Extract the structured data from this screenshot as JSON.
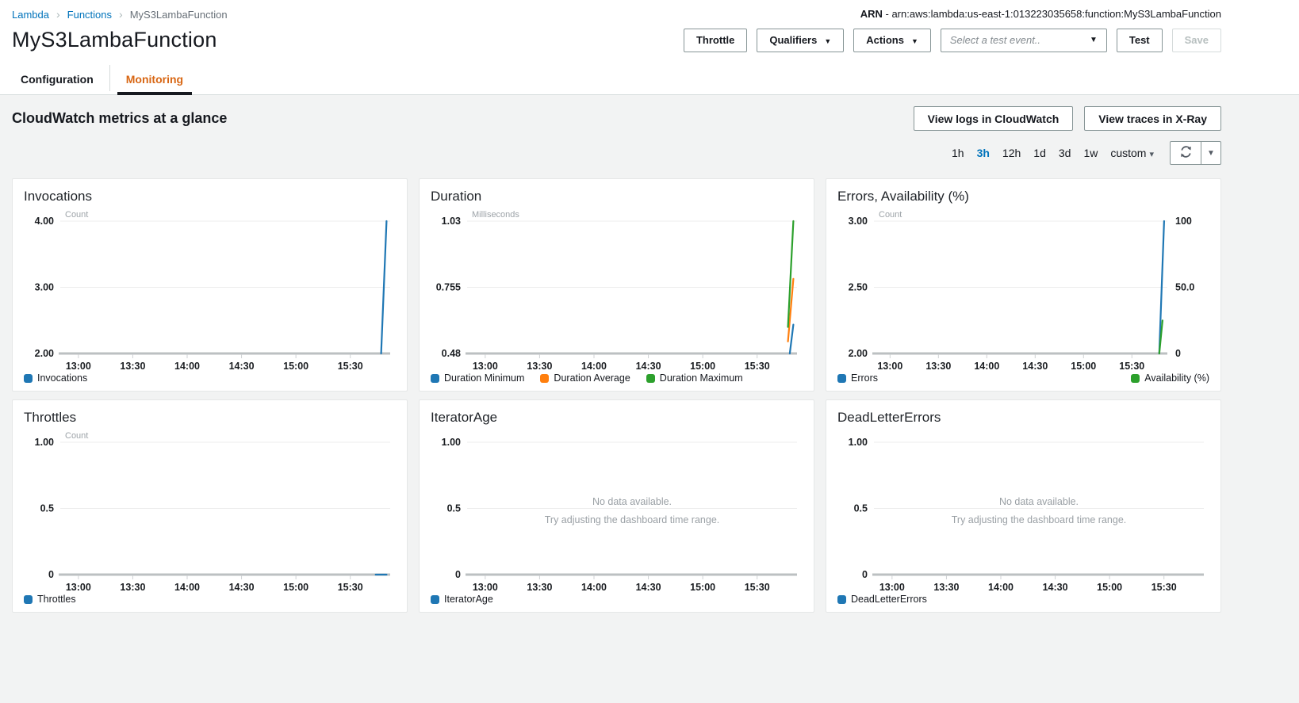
{
  "breadcrumb": {
    "items": [
      {
        "label": "Lambda",
        "link": true
      },
      {
        "label": "Functions",
        "link": true
      },
      {
        "label": "MyS3LambaFunction",
        "link": false
      }
    ]
  },
  "arn": {
    "label": "ARN",
    "dash": " - ",
    "value": "arn:aws:lambda:us-east-1:013223035658:function:MyS3LambaFunction"
  },
  "page_title": "MyS3LambaFunction",
  "toolbar": {
    "throttle": "Throttle",
    "qualifiers": "Qualifiers",
    "actions": "Actions",
    "test_event_placeholder": "Select a test event..",
    "test": "Test",
    "save": "Save"
  },
  "tabs": [
    {
      "label": "Configuration",
      "active": false
    },
    {
      "label": "Monitoring",
      "active": true
    }
  ],
  "metrics_header": {
    "title": "CloudWatch metrics at a glance",
    "view_logs": "View logs in CloudWatch",
    "view_traces": "View traces in X-Ray"
  },
  "time_controls": {
    "ranges": [
      "1h",
      "3h",
      "12h",
      "1d",
      "3d",
      "1w"
    ],
    "selected": "3h",
    "custom_label": "custom"
  },
  "no_data_messages": {
    "line1": "No data available.",
    "line2": "Try adjusting the dashboard time range."
  },
  "colors": {
    "blue": "#1f77b4",
    "orange": "#ff7f0e",
    "green": "#2ca02c",
    "accent_orange": "#d86613",
    "link_blue": "#0073bb"
  },
  "chart_data": [
    {
      "type": "line",
      "title": "Invocations",
      "unit": "Count",
      "no_data": false,
      "legend_layout": "row",
      "x_range": [
        "12:50",
        "15:52"
      ],
      "x_ticks": [
        "13:00",
        "13:30",
        "14:00",
        "14:30",
        "15:00",
        "15:30"
      ],
      "y_axis": {
        "ticks": [
          "4.00",
          "3.00",
          "2.00"
        ],
        "min": 2,
        "max": 4
      },
      "series": [
        {
          "name": "Invocations",
          "color": "blue",
          "axis": "left",
          "points": [
            [
              "15:47",
              2
            ],
            [
              "15:50",
              4
            ]
          ]
        }
      ]
    },
    {
      "type": "line",
      "title": "Duration",
      "unit": "Milliseconds",
      "no_data": false,
      "legend_layout": "row",
      "x_range": [
        "12:50",
        "15:52"
      ],
      "x_ticks": [
        "13:00",
        "13:30",
        "14:00",
        "14:30",
        "15:00",
        "15:30"
      ],
      "y_axis": {
        "ticks": [
          "1.03",
          "0.755",
          "0.48"
        ],
        "min": 0.48,
        "max": 1.03
      },
      "series": [
        {
          "name": "Duration Minimum",
          "color": "blue",
          "axis": "left",
          "points": [
            [
              "15:48",
              0.48
            ],
            [
              "15:50",
              0.6
            ]
          ]
        },
        {
          "name": "Duration Average",
          "color": "orange",
          "axis": "left",
          "points": [
            [
              "15:47",
              0.53
            ],
            [
              "15:50",
              0.79
            ]
          ]
        },
        {
          "name": "Duration Maximum",
          "color": "green",
          "axis": "left",
          "points": [
            [
              "15:47",
              0.59
            ],
            [
              "15:50",
              1.03
            ]
          ]
        }
      ]
    },
    {
      "type": "line",
      "title": "Errors, Availability (%)",
      "unit": "Count",
      "no_data": false,
      "legend_layout": "split",
      "x_range": [
        "12:50",
        "15:52"
      ],
      "x_ticks": [
        "13:00",
        "13:30",
        "14:00",
        "14:30",
        "15:00",
        "15:30"
      ],
      "y_axis": {
        "ticks": [
          "3.00",
          "2.50",
          "2.00"
        ],
        "min": 2,
        "max": 3
      },
      "y_axis_right": {
        "ticks": [
          "100",
          "50.0",
          "0"
        ],
        "min": 0,
        "max": 100
      },
      "series": [
        {
          "name": "Errors",
          "color": "blue",
          "axis": "left",
          "points": [
            [
              "15:47",
              2
            ],
            [
              "15:50",
              3
            ]
          ]
        },
        {
          "name": "Availability (%)",
          "color": "green",
          "axis": "right",
          "points": [
            [
              "15:47",
              0
            ],
            [
              "15:49",
              25
            ]
          ]
        }
      ]
    },
    {
      "type": "line",
      "title": "Throttles",
      "unit": "Count",
      "no_data": false,
      "legend_layout": "row",
      "x_range": [
        "12:50",
        "15:52"
      ],
      "x_ticks": [
        "13:00",
        "13:30",
        "14:00",
        "14:30",
        "15:00",
        "15:30"
      ],
      "y_axis": {
        "ticks": [
          "1.00",
          "0.5",
          "0"
        ],
        "min": 0,
        "max": 1
      },
      "series": [
        {
          "name": "Throttles",
          "color": "blue",
          "axis": "left",
          "points": [
            [
              "15:44",
              0
            ],
            [
              "15:50",
              0
            ]
          ]
        }
      ]
    },
    {
      "type": "line",
      "title": "IteratorAge",
      "unit": "",
      "no_data": true,
      "legend_layout": "row",
      "x_range": [
        "12:50",
        "15:52"
      ],
      "x_ticks": [
        "13:00",
        "13:30",
        "14:00",
        "14:30",
        "15:00",
        "15:30"
      ],
      "y_axis": {
        "ticks": [
          "1.00",
          "0.5",
          "0"
        ],
        "min": 0,
        "max": 1
      },
      "series": [
        {
          "name": "IteratorAge",
          "color": "blue",
          "axis": "left",
          "points": []
        }
      ]
    },
    {
      "type": "line",
      "title": "DeadLetterErrors",
      "unit": "",
      "no_data": true,
      "legend_layout": "row",
      "x_range": [
        "12:50",
        "15:52"
      ],
      "x_ticks": [
        "13:00",
        "13:30",
        "14:00",
        "14:30",
        "15:00",
        "15:30"
      ],
      "y_axis": {
        "ticks": [
          "1.00",
          "0.5",
          "0"
        ],
        "min": 0,
        "max": 1
      },
      "series": [
        {
          "name": "DeadLetterErrors",
          "color": "blue",
          "axis": "left",
          "points": []
        }
      ]
    }
  ]
}
